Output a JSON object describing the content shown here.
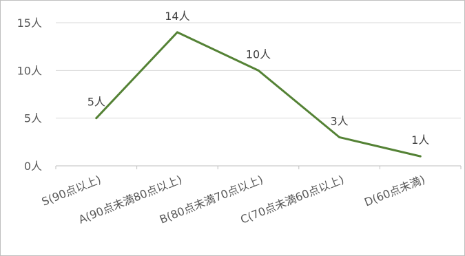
{
  "chart_data": {
    "type": "line",
    "title": "",
    "xlabel": "",
    "ylabel": "",
    "categories": [
      "S(90点以上)",
      "A(90点未満80点以上)",
      "B(80点未満70点以上)",
      "C(70点未満60点以上)",
      "D(60点未満)"
    ],
    "series": [
      {
        "values": [
          5,
          14,
          10,
          3,
          1
        ],
        "labels": [
          "5人",
          "14人",
          "10人",
          "3人",
          "1人"
        ]
      }
    ],
    "ylim": [
      0,
      15
    ],
    "yticks": [
      0,
      5,
      10,
      15
    ],
    "ytick_labels": [
      "0人",
      "5人",
      "10人",
      "15人"
    ],
    "grid": true,
    "legend": "none",
    "colors": {
      "line": "#548235",
      "grid": "#d9d9d9",
      "axis": "#bfbfbf"
    }
  }
}
